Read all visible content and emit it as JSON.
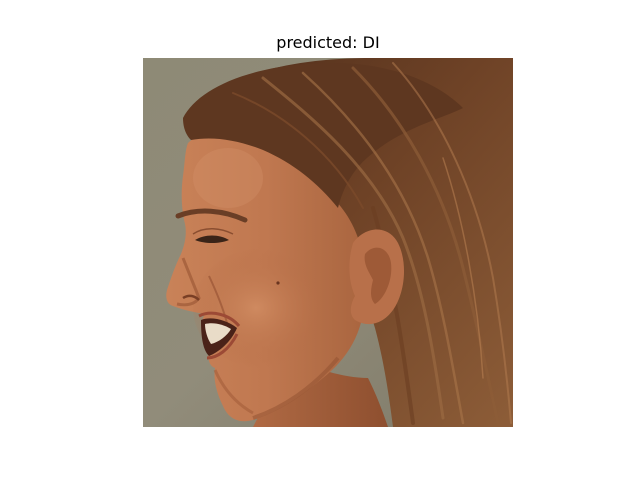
{
  "figure": {
    "title": "predicted: DI"
  },
  "image": {
    "colors": {
      "background_wall": "#8f8a78",
      "hair_dark": "#5a3520",
      "hair_mid": "#7a4a2a",
      "hair_light": "#9a6a42",
      "skin": "#c17a52",
      "skin_shadow": "#a65f3c",
      "skin_highlight": "#d68f66",
      "ear": "#b8704a",
      "teeth": "#e9dcc8",
      "lips": "#9c4a35",
      "eyebrow": "#6a3e26"
    }
  }
}
